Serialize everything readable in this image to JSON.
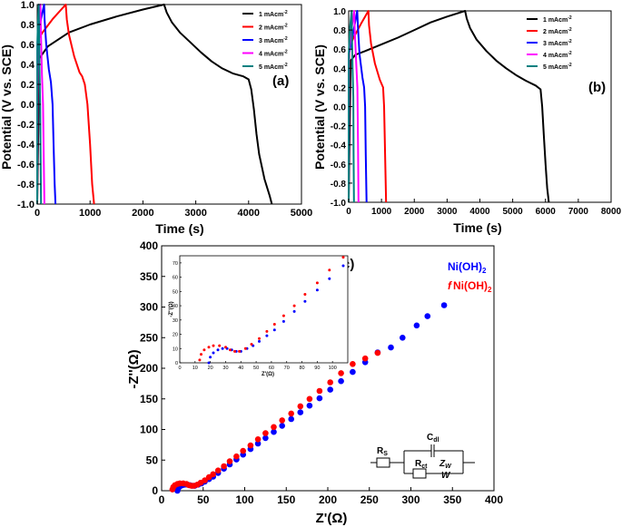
{
  "chart_data": [
    {
      "type": "line",
      "panel_label": "(a)",
      "xlabel": "Time (s)",
      "ylabel": "Potential (V vs. SCE)",
      "xlim": [
        0,
        5000
      ],
      "ylim": [
        -1.0,
        1.0
      ],
      "xticks": [
        "0",
        "1000",
        "2000",
        "3000",
        "4000",
        "5000"
      ],
      "yticks": [
        "-1.0",
        "-0.8",
        "-0.6",
        "-0.4",
        "-0.2",
        "0.0",
        "0.2",
        "0.4",
        "0.6",
        "0.8",
        "1.0"
      ],
      "legend_position": "top-right",
      "series": [
        {
          "name": "1 mAcm-2",
          "color": "#000000",
          "x": [
            0,
            40,
            200,
            600,
            1000,
            1500,
            2000,
            2400,
            2450,
            2550,
            2700,
            2900,
            3100,
            3300,
            3500,
            3700,
            3900,
            4000,
            4050,
            4100,
            4150,
            4200,
            4300,
            4400,
            4440
          ],
          "y": [
            -1.0,
            0.46,
            0.58,
            0.72,
            0.8,
            0.88,
            0.95,
            1.0,
            0.92,
            0.82,
            0.72,
            0.62,
            0.52,
            0.43,
            0.36,
            0.31,
            0.28,
            0.25,
            0.15,
            -0.05,
            -0.3,
            -0.5,
            -0.75,
            -0.92,
            -1.0
          ]
        },
        {
          "name": "2 mAcm-2",
          "color": "#ff0000",
          "x": [
            0,
            15,
            100,
            300,
            540,
            560,
            600,
            700,
            800,
            850,
            900,
            950,
            1000,
            1040,
            1075
          ],
          "y": [
            -1.0,
            0.65,
            0.72,
            0.86,
            1.0,
            0.85,
            0.7,
            0.48,
            0.32,
            0.28,
            0.2,
            0.0,
            -0.4,
            -0.8,
            -1.0
          ]
        },
        {
          "name": "3 mAcm-2",
          "color": "#0000ff",
          "x": [
            0,
            5,
            50,
            130,
            140,
            170,
            220,
            260,
            290,
            310,
            330,
            345
          ],
          "y": [
            -1.0,
            0.55,
            0.8,
            1.0,
            0.85,
            0.6,
            0.35,
            0.22,
            0.0,
            -0.4,
            -0.8,
            -1.0
          ]
        },
        {
          "name": "4 mAcm-2",
          "color": "#ff00ff",
          "x": [
            0,
            3,
            30,
            60,
            70,
            90,
            110,
            125,
            135
          ],
          "y": [
            -1.0,
            0.6,
            0.85,
            1.0,
            0.7,
            0.3,
            0.0,
            -0.6,
            -1.0
          ]
        },
        {
          "name": "5 mAcm-2",
          "color": "#008080",
          "x": [
            0,
            2,
            15,
            30,
            35,
            45,
            55,
            65,
            72
          ],
          "y": [
            -1.0,
            0.6,
            0.85,
            1.0,
            0.7,
            0.3,
            0.0,
            -0.6,
            -1.0
          ]
        }
      ]
    },
    {
      "type": "line",
      "panel_label": "(b)",
      "xlabel": "Time (s)",
      "ylabel": "Potential (V vs. SCE)",
      "xlim": [
        0,
        8000
      ],
      "ylim": [
        -1.0,
        1.0
      ],
      "xticks": [
        "0",
        "1000",
        "2000",
        "3000",
        "4000",
        "5000",
        "6000",
        "7000",
        "8000"
      ],
      "yticks": [
        "-1.0",
        "-0.8",
        "-0.6",
        "-0.4",
        "-0.2",
        "0.0",
        "0.2",
        "0.4",
        "0.6",
        "0.8",
        "1.0"
      ],
      "legend_position": "top-right",
      "series": [
        {
          "name": "1 mAcm-2",
          "color": "#000000",
          "x": [
            0,
            60,
            200,
            500,
            1000,
            1500,
            2000,
            2500,
            3000,
            3550,
            3600,
            3700,
            3900,
            4200,
            4500,
            4800,
            5100,
            5400,
            5700,
            5850,
            5900,
            5950,
            6000,
            6050,
            6100
          ],
          "y": [
            -1.0,
            0.48,
            0.54,
            0.58,
            0.65,
            0.72,
            0.8,
            0.88,
            0.94,
            1.0,
            0.92,
            0.82,
            0.7,
            0.58,
            0.48,
            0.4,
            0.33,
            0.27,
            0.22,
            0.18,
            0.0,
            -0.3,
            -0.6,
            -0.85,
            -1.0
          ]
        },
        {
          "name": "2 mAcm-2",
          "color": "#ff0000",
          "x": [
            0,
            20,
            150,
            400,
            600,
            620,
            680,
            800,
            950,
            1050,
            1080,
            1110,
            1140
          ],
          "y": [
            -1.0,
            0.62,
            0.72,
            0.88,
            1.0,
            0.85,
            0.66,
            0.45,
            0.28,
            0.2,
            0.0,
            -0.5,
            -1.0
          ]
        },
        {
          "name": "3 mAcm-2",
          "color": "#0000ff",
          "x": [
            0,
            8,
            100,
            260,
            280,
            330,
            420,
            470,
            500,
            520,
            545
          ],
          "y": [
            -1.0,
            0.55,
            0.7,
            1.0,
            0.85,
            0.55,
            0.3,
            0.2,
            0.0,
            -0.5,
            -1.0
          ]
        },
        {
          "name": "4 mAcm-2",
          "color": "#ff00ff",
          "x": [
            0,
            5,
            80,
            170,
            185,
            230,
            265,
            285,
            300
          ],
          "y": [
            -1.0,
            0.55,
            0.8,
            1.0,
            0.8,
            0.45,
            0.2,
            -0.4,
            -1.0
          ]
        },
        {
          "name": "5 mAcm-2",
          "color": "#008080",
          "x": [
            0,
            3,
            40,
            90,
            100,
            120,
            140,
            150,
            160
          ],
          "y": [
            -1.0,
            0.55,
            0.82,
            1.0,
            0.75,
            0.4,
            0.1,
            -0.5,
            -1.0
          ]
        }
      ]
    },
    {
      "type": "scatter",
      "panel_label": "(c)",
      "xlabel": "Z'(Ω)",
      "ylabel": "-Z''(Ω)",
      "xlim": [
        0,
        400
      ],
      "ylim": [
        0,
        400
      ],
      "xticks": [
        "0",
        "50",
        "100",
        "150",
        "200",
        "250",
        "300",
        "350",
        "400"
      ],
      "yticks": [
        "0",
        "50",
        "100",
        "150",
        "200",
        "250",
        "300",
        "350",
        "400"
      ],
      "legend_position": "top-right",
      "legend": [
        "Ni(OH)2",
        "f Ni(OH)2"
      ],
      "series": [
        {
          "name": "Ni(OH)2",
          "color": "#0000ff",
          "x": [
            19,
            20,
            22,
            25,
            28,
            31,
            34,
            37,
            40,
            44,
            48,
            52,
            57,
            62,
            68,
            75,
            82,
            90,
            98,
            107,
            116,
            125,
            135,
            145,
            156,
            167,
            178,
            190,
            203,
            216,
            230,
            245,
            260,
            276,
            290,
            307,
            320,
            340
          ],
          "y": [
            0,
            4,
            7,
            9,
            10,
            10,
            9,
            8,
            8,
            10,
            12,
            15,
            19,
            23,
            29,
            36,
            43,
            51,
            59,
            68,
            77,
            86,
            96,
            106,
            117,
            128,
            139,
            151,
            165,
            179,
            194,
            210,
            226,
            234,
            250,
            270,
            285,
            303
          ]
        },
        {
          "name": "f Ni(OH)2",
          "color": "#ff0000",
          "x": [
            13,
            14,
            16,
            19,
            22,
            26,
            30,
            33,
            36,
            39,
            43,
            47,
            52,
            57,
            62,
            68,
            75,
            82,
            90,
            98,
            107,
            116,
            125,
            135,
            145,
            156,
            167,
            178,
            190,
            203,
            216,
            230,
            245,
            260
          ],
          "y": [
            2,
            6,
            9,
            11,
            12,
            12,
            11,
            9,
            8,
            8,
            10,
            13,
            17,
            22,
            27,
            33,
            40,
            48,
            56,
            65,
            74,
            84,
            94,
            104,
            115,
            126,
            138,
            150,
            163,
            177,
            192,
            207,
            216,
            225
          ]
        }
      ],
      "inset": {
        "xlabel": "Z'(Ω)",
        "ylabel": "-Z''(Ω)",
        "xlim": [
          0,
          110
        ],
        "ylim": [
          0,
          75
        ],
        "xticks": [
          "0",
          "10",
          "20",
          "30",
          "40",
          "50",
          "60",
          "70",
          "80",
          "90",
          "100"
        ],
        "yticks": [
          "0",
          "10",
          "20",
          "30",
          "40",
          "50",
          "60",
          "70"
        ]
      },
      "circuit_labels": {
        "rs": "R",
        "rs_sub": "S",
        "cdl": "C",
        "cdl_sub": "dl",
        "rct": "R",
        "rct_sub": "ct",
        "zw": "Z",
        "zw_sub": "W",
        "zw_symbol": "W"
      }
    }
  ],
  "legend_text": {
    "items": [
      "1 mAcm",
      "2 mAcm",
      "3 mAcm",
      "4 mAcm",
      "5 mAcm"
    ],
    "sup": "-2"
  },
  "legend_c": {
    "blue": "Ni(OH)",
    "blue_sub": "2",
    "red_prefix": "f",
    "red": "Ni(OH)",
    "red_sub": "2"
  }
}
